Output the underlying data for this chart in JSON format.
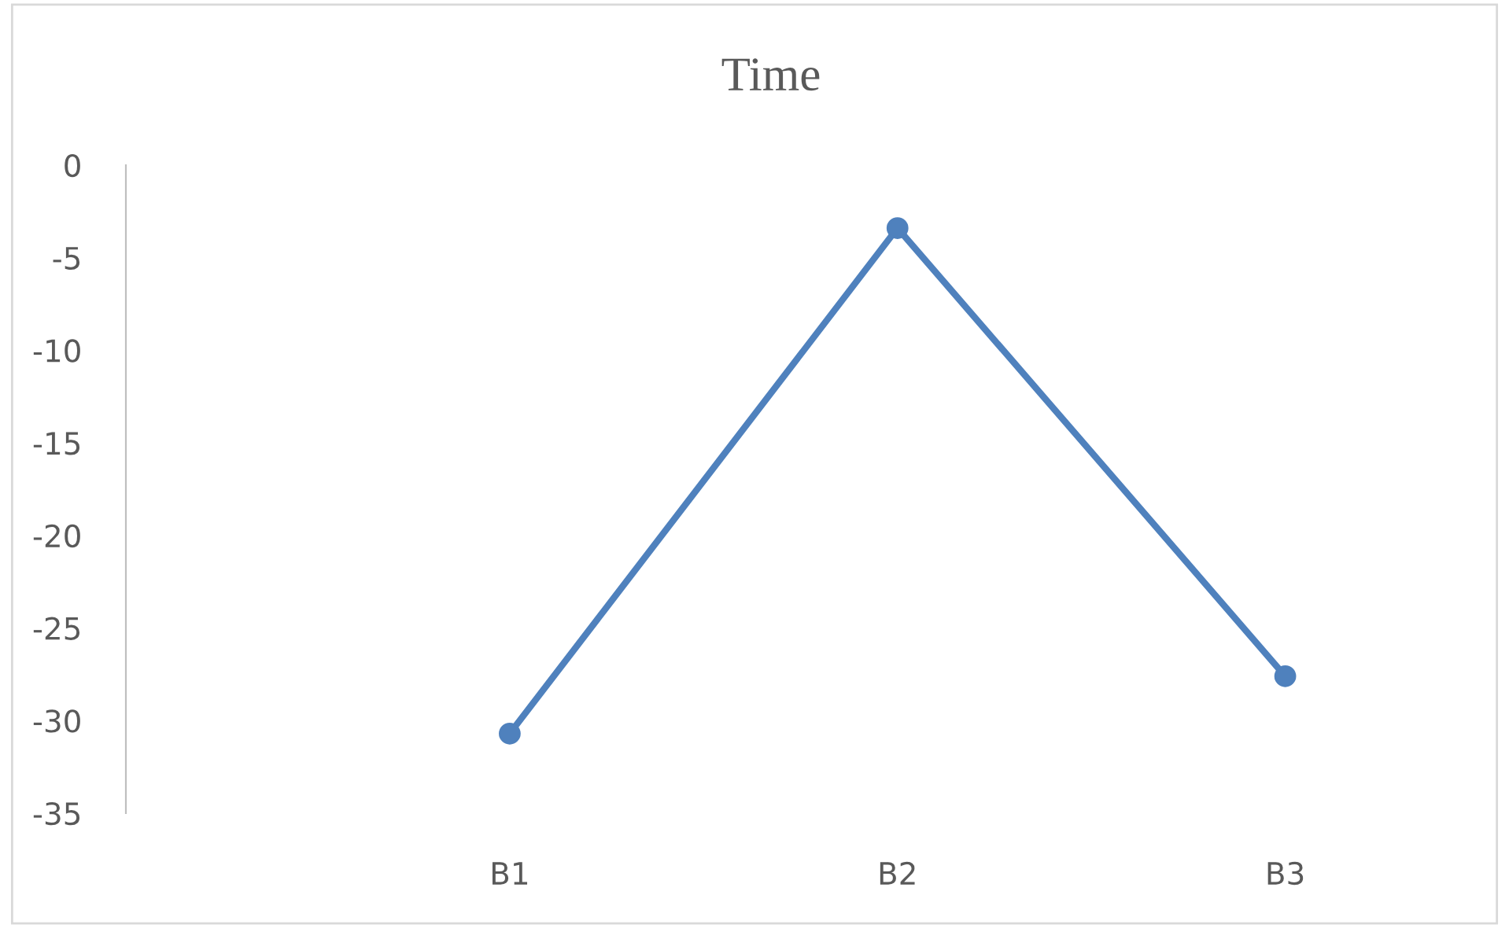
{
  "chart_data": {
    "type": "line",
    "title": "Time",
    "categories": [
      "B1",
      "B2",
      "B3"
    ],
    "series": [
      {
        "color": "#4f81bd",
        "values": [
          -30.7,
          -3.4,
          -27.6
        ]
      }
    ],
    "ylim": [
      -35,
      0
    ],
    "yticks": [
      0,
      -5,
      -10,
      -15,
      -20,
      -25,
      -30,
      -35
    ],
    "marker": "circle",
    "line_style": "solid",
    "grid": false,
    "legend": false
  }
}
